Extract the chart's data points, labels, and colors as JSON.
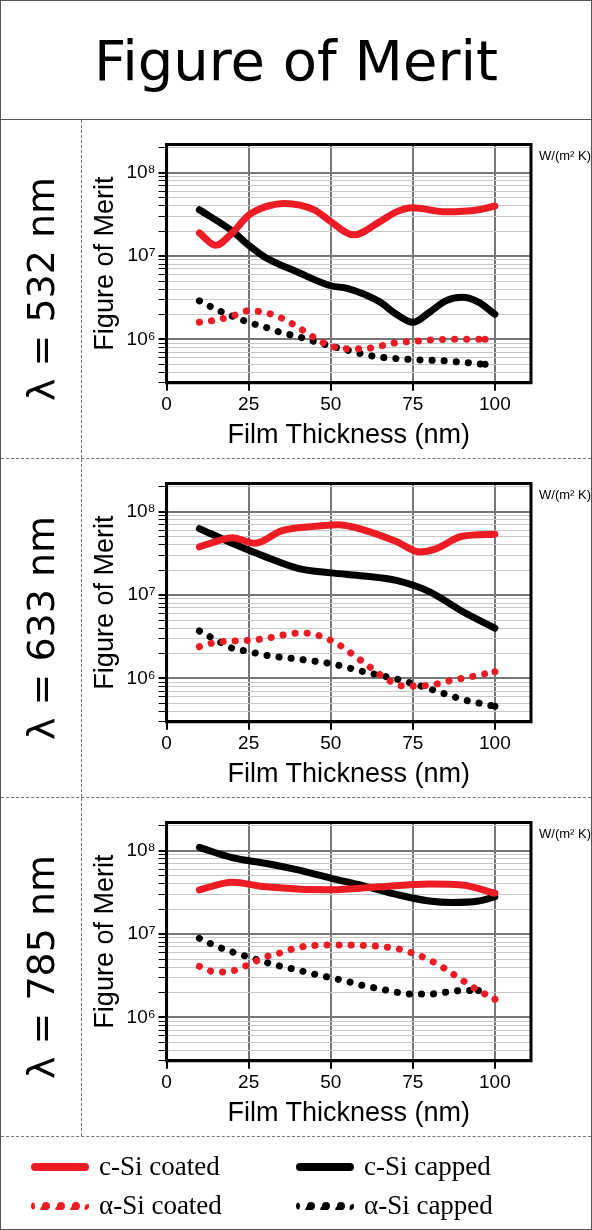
{
  "chart_data": [
    {
      "type": "line",
      "title": "Figure of Merit",
      "subtitle": "λ = 532 nm",
      "xlabel": "Film Thickness (nm)",
      "ylabel": "Figure of Merit",
      "annotations": [
        "W/(m² K)"
      ],
      "log": "y",
      "grid": true,
      "legend": false,
      "marker": "none",
      "xlim": [
        0,
        111
      ],
      "xticks": [
        0,
        25,
        50,
        75,
        100
      ],
      "ylim": [
        300000,
        220000000
      ],
      "yticks": [
        {
          "value": 300000,
          "label": null
        },
        {
          "value": 400000,
          "label": null
        },
        {
          "value": 500000,
          "label": null
        },
        {
          "value": 600000,
          "label": null
        },
        {
          "value": 700000,
          "label": null
        },
        {
          "value": 800000,
          "label": null
        },
        {
          "value": 900000,
          "label": null
        },
        {
          "value": 1000000,
          "label": "10⁶"
        },
        {
          "value": 2000000,
          "label": null
        },
        {
          "value": 3000000,
          "label": null
        },
        {
          "value": 4000000,
          "label": null
        },
        {
          "value": 5000000,
          "label": null
        },
        {
          "value": 6000000,
          "label": null
        },
        {
          "value": 7000000,
          "label": null
        },
        {
          "value": 8000000,
          "label": null
        },
        {
          "value": 9000000,
          "label": null
        },
        {
          "value": 10000000,
          "label": "10⁷"
        },
        {
          "value": 20000000,
          "label": null
        },
        {
          "value": 30000000,
          "label": null
        },
        {
          "value": 40000000,
          "label": null
        },
        {
          "value": 50000000,
          "label": null
        },
        {
          "value": 60000000,
          "label": null
        },
        {
          "value": 70000000,
          "label": null
        },
        {
          "value": 80000000,
          "label": null
        },
        {
          "value": 90000000,
          "label": null
        },
        {
          "value": 100000000,
          "label": "10⁸"
        },
        {
          "value": 200000000,
          "label": null
        }
      ],
      "series": [
        {
          "color": "#ed1c24",
          "line_style": "solid",
          "x": [
            10,
            15,
            20,
            25,
            30,
            36,
            45,
            50,
            57,
            65,
            70,
            75,
            85,
            95,
            100
          ],
          "values": [
            19000000,
            13500000,
            19000000,
            31000000,
            39000000,
            43000000,
            36000000,
            26000000,
            18000000,
            26000000,
            34000000,
            38000000,
            34000000,
            36000000,
            40000000
          ]
        },
        {
          "color": "#000000",
          "line_style": "solid",
          "x": [
            10,
            20,
            25,
            30,
            40,
            50,
            55,
            60,
            65,
            70,
            75,
            80,
            85,
            90,
            95,
            100
          ],
          "values": [
            36000000,
            20000000,
            13500000,
            9700000,
            6400000,
            4400000,
            4100000,
            3500000,
            2800000,
            2000000,
            1600000,
            2100000,
            2900000,
            3200000,
            2800000,
            2000000
          ]
        },
        {
          "color": "#ed1c24",
          "line_style": "dotted",
          "x": [
            10,
            15,
            20,
            25,
            30,
            35,
            40,
            45,
            50,
            55,
            60,
            65,
            70,
            75,
            80,
            90,
            97
          ],
          "values": [
            1600000,
            1700000,
            1900000,
            2200000,
            2100000,
            1800000,
            1400000,
            1050000,
            830000,
            770000,
            770000,
            830000,
            910000,
            940000,
            980000,
            1000000,
            1000000
          ]
        },
        {
          "color": "#000000",
          "line_style": "dotted",
          "x": [
            10,
            15,
            20,
            25,
            30,
            35,
            40,
            45,
            50,
            55,
            60,
            65,
            75,
            85,
            97
          ],
          "values": [
            2900000,
            2300000,
            1900000,
            1600000,
            1400000,
            1200000,
            1080000,
            940000,
            830000,
            740000,
            660000,
            610000,
            570000,
            550000,
            500000
          ]
        }
      ]
    },
    {
      "type": "line",
      "subtitle": "λ = 633 nm",
      "xlabel": "Film Thickness (nm)",
      "ylabel": "Figure of Merit",
      "annotations": [
        "W/(m² K)"
      ],
      "log": "y",
      "grid": true,
      "legend": false,
      "marker": "none",
      "xlim": [
        0,
        111
      ],
      "xticks": [
        0,
        25,
        50,
        75,
        100
      ],
      "ylim": [
        300000,
        220000000
      ],
      "yticks": [
        {
          "value": 300000,
          "label": null
        },
        {
          "value": 400000,
          "label": null
        },
        {
          "value": 500000,
          "label": null
        },
        {
          "value": 600000,
          "label": null
        },
        {
          "value": 700000,
          "label": null
        },
        {
          "value": 800000,
          "label": null
        },
        {
          "value": 900000,
          "label": null
        },
        {
          "value": 1000000,
          "label": "10⁶"
        },
        {
          "value": 2000000,
          "label": null
        },
        {
          "value": 3000000,
          "label": null
        },
        {
          "value": 4000000,
          "label": null
        },
        {
          "value": 5000000,
          "label": null
        },
        {
          "value": 6000000,
          "label": null
        },
        {
          "value": 7000000,
          "label": null
        },
        {
          "value": 8000000,
          "label": null
        },
        {
          "value": 9000000,
          "label": null
        },
        {
          "value": 10000000,
          "label": "10⁷"
        },
        {
          "value": 20000000,
          "label": null
        },
        {
          "value": 30000000,
          "label": null
        },
        {
          "value": 40000000,
          "label": null
        },
        {
          "value": 50000000,
          "label": null
        },
        {
          "value": 60000000,
          "label": null
        },
        {
          "value": 70000000,
          "label": null
        },
        {
          "value": 80000000,
          "label": null
        },
        {
          "value": 90000000,
          "label": null
        },
        {
          "value": 100000000,
          "label": "10⁸"
        },
        {
          "value": 200000000,
          "label": null
        }
      ],
      "series": [
        {
          "color": "#ed1c24",
          "line_style": "solid",
          "x": [
            10,
            15,
            20,
            27,
            35,
            45,
            52,
            60,
            70,
            77,
            82,
            90,
            100
          ],
          "values": [
            38000000,
            44000000,
            49000000,
            42000000,
            59000000,
            67000000,
            70000000,
            61000000,
            44000000,
            33000000,
            36000000,
            51000000,
            54000000
          ]
        },
        {
          "color": "#000000",
          "line_style": "solid",
          "x": [
            10,
            20,
            30,
            40,
            50,
            60,
            70,
            80,
            90,
            100
          ],
          "values": [
            63000000,
            42000000,
            29000000,
            21000000,
            18500000,
            17000000,
            15000000,
            11000000,
            6400000,
            4000000
          ]
        },
        {
          "color": "#ed1c24",
          "line_style": "dotted",
          "x": [
            10,
            15,
            20,
            27,
            32,
            37,
            42,
            47,
            52,
            57,
            62,
            67,
            72,
            77,
            82,
            87,
            92,
            100
          ],
          "values": [
            2400000,
            2700000,
            2800000,
            2900000,
            3100000,
            3400000,
            3500000,
            3200000,
            2600000,
            1900000,
            1360000,
            980000,
            810000,
            810000,
            850000,
            950000,
            1030000,
            1200000
          ]
        },
        {
          "color": "#000000",
          "line_style": "dotted",
          "x": [
            10,
            15,
            20,
            25,
            30,
            40,
            50,
            60,
            70,
            80,
            90,
            100
          ],
          "values": [
            3700000,
            2900000,
            2300000,
            2100000,
            1900000,
            1700000,
            1500000,
            1200000,
            980000,
            750000,
            560000,
            460000
          ]
        }
      ]
    },
    {
      "type": "line",
      "subtitle": "λ = 785 nm",
      "xlabel": "Film Thickness (nm)",
      "ylabel": "Figure of Merit",
      "annotations": [
        "W/(m² K)"
      ],
      "log": "y",
      "grid": true,
      "legend": "bottom",
      "marker": "none",
      "xlim": [
        0,
        111
      ],
      "xticks": [
        0,
        25,
        50,
        75,
        100
      ],
      "ylim": [
        300000,
        220000000
      ],
      "yticks": [
        {
          "value": 300000,
          "label": null
        },
        {
          "value": 400000,
          "label": null
        },
        {
          "value": 500000,
          "label": null
        },
        {
          "value": 600000,
          "label": null
        },
        {
          "value": 700000,
          "label": null
        },
        {
          "value": 800000,
          "label": null
        },
        {
          "value": 900000,
          "label": null
        },
        {
          "value": 1000000,
          "label": "10⁶"
        },
        {
          "value": 2000000,
          "label": null
        },
        {
          "value": 3000000,
          "label": null
        },
        {
          "value": 4000000,
          "label": null
        },
        {
          "value": 5000000,
          "label": null
        },
        {
          "value": 6000000,
          "label": null
        },
        {
          "value": 7000000,
          "label": null
        },
        {
          "value": 8000000,
          "label": null
        },
        {
          "value": 9000000,
          "label": null
        },
        {
          "value": 10000000,
          "label": "10⁷"
        },
        {
          "value": 20000000,
          "label": null
        },
        {
          "value": 30000000,
          "label": null
        },
        {
          "value": 40000000,
          "label": null
        },
        {
          "value": 50000000,
          "label": null
        },
        {
          "value": 60000000,
          "label": null
        },
        {
          "value": 70000000,
          "label": null
        },
        {
          "value": 80000000,
          "label": null
        },
        {
          "value": 90000000,
          "label": null
        },
        {
          "value": 100000000,
          "label": "10⁸"
        },
        {
          "value": 200000000,
          "label": null
        }
      ],
      "series": [
        {
          "name": "c-Si coated",
          "color": "#ed1c24",
          "line_style": "solid",
          "x": [
            10,
            20,
            30,
            50,
            65,
            80,
            90,
            100
          ],
          "values": [
            34000000,
            42000000,
            37000000,
            34000000,
            37000000,
            40000000,
            39000000,
            31000000
          ]
        },
        {
          "name": "c-Si capped",
          "color": "#000000",
          "line_style": "solid",
          "x": [
            10,
            20,
            30,
            40,
            50,
            60,
            70,
            80,
            87,
            95,
            100
          ],
          "values": [
            110000000,
            83000000,
            71000000,
            59000000,
            47000000,
            38000000,
            30000000,
            25000000,
            24000000,
            25000000,
            28000000
          ]
        },
        {
          "name": "α-Si coated",
          "color": "#ed1c24",
          "line_style": "dotted",
          "x": [
            10,
            15,
            20,
            25,
            30,
            35,
            40,
            50,
            60,
            70,
            75,
            80,
            85,
            90,
            95,
            100
          ],
          "values": [
            4100000,
            3500000,
            3600000,
            4300000,
            5300000,
            6000000,
            6900000,
            7400000,
            7300000,
            6700000,
            5900000,
            4900000,
            3800000,
            2800000,
            2100000,
            1650000
          ]
        },
        {
          "name": "α-Si capped",
          "color": "#000000",
          "line_style": "dotted",
          "x": [
            10,
            15,
            20,
            25,
            30,
            35,
            40,
            45,
            50,
            55,
            60,
            65,
            70,
            75,
            80,
            85,
            90,
            95
          ],
          "values": [
            8900000,
            7200000,
            6100000,
            5300000,
            4600000,
            4100000,
            3700000,
            3300000,
            3000000,
            2700000,
            2400000,
            2200000,
            2000000,
            1900000,
            1900000,
            2000000,
            2100000,
            2100000
          ]
        }
      ]
    }
  ]
}
